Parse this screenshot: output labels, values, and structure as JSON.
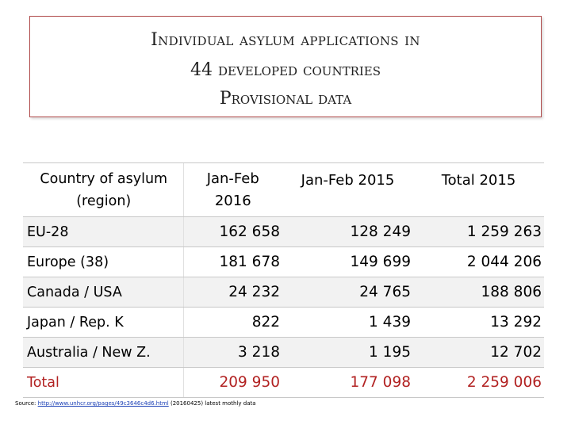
{
  "title": {
    "line1": "Individual asylum applications in",
    "line2": "44 developed countries",
    "line3": "Provisional data"
  },
  "table": {
    "headers": {
      "country_l1": "Country of asylum",
      "country_l2": "(region)",
      "col1_l1": "Jan-Feb",
      "col1_l2": "2016",
      "col2": "Jan-Feb 2015",
      "col3": "Total 2015"
    },
    "rows": [
      {
        "country": "EU-28",
        "jan_feb_2016": "162 658",
        "jan_feb_2015": "128 249",
        "total_2015": "1 259 263"
      },
      {
        "country": "Europe (38)",
        "jan_feb_2016": "181 678",
        "jan_feb_2015": "149 699",
        "total_2015": "2 044 206"
      },
      {
        "country": "Canada / USA",
        "jan_feb_2016": "24 232",
        "jan_feb_2015": "24 765",
        "total_2015": "188 806"
      },
      {
        "country": "Japan / Rep. K",
        "jan_feb_2016": "822",
        "jan_feb_2015": "1 439",
        "total_2015": "13 292"
      },
      {
        "country": "Australia /  New Z.",
        "jan_feb_2016": "3 218",
        "jan_feb_2015": "1 195",
        "total_2015": "12 702"
      },
      {
        "country": "Total",
        "jan_feb_2016": "209 950",
        "jan_feb_2015": "177 098",
        "total_2015": "2 259 006"
      }
    ]
  },
  "source": {
    "prefix": "Source: ",
    "link": "http://www.unhcr.org/pages/49c3646c4d6.html",
    "suffix": " (20160425) latest mothly data"
  },
  "colors": {
    "title_border": "#b04a4a",
    "total_text": "#b22222",
    "link": "#1a3fb5"
  }
}
